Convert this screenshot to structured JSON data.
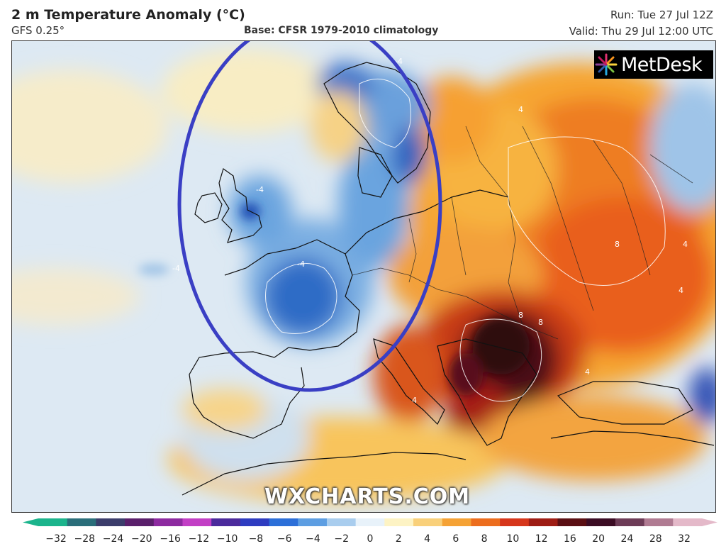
{
  "header": {
    "title": "2 m Temperature Anomaly (°C)",
    "model": "GFS 0.25°",
    "baseline": "Base: CFSR 1979-2010 climatology",
    "run": "Run: Tue 27 Jul 12Z",
    "valid": "Valid: Thu 29 Jul 12:00 UTC"
  },
  "branding": {
    "logo": "MetDesk",
    "logo_icon": "metdesk-starburst-icon",
    "watermark": "WXCHARTS.COM"
  },
  "colors": {
    "highlight_ellipse": "#3a3fc4",
    "background_white": "#ffffff",
    "cold_light": "#dbe9f5",
    "cold_mid": "#8fbde6",
    "cold_deep": "#2b6cc4",
    "warm_light": "#fbe3a4",
    "warm_mid": "#f6a532",
    "warm_deep": "#e2581c",
    "hot_deep": "#8e1d12",
    "extreme": "#3a0d0f"
  },
  "colorbar": {
    "labels": [
      "−32",
      "−28",
      "−24",
      "−20",
      "−16",
      "−12",
      "−10",
      "−8",
      "−6",
      "−4",
      "−2",
      "0",
      "2",
      "4",
      "6",
      "8",
      "10",
      "12",
      "16",
      "20",
      "24",
      "28",
      "32"
    ],
    "colors": [
      "#1bb48c",
      "#2a6e7a",
      "#3b3d6b",
      "#5a1f6b",
      "#8d2aa0",
      "#c23fc5",
      "#4b2a9c",
      "#2e3cc0",
      "#2c6fd8",
      "#5d9ee2",
      "#a9cdee",
      "#e8f2fa",
      "#fdf3c4",
      "#f9d07a",
      "#f5a235",
      "#ec6d1e",
      "#d6361b",
      "#9e1d14",
      "#5a0f13",
      "#3b0c24",
      "#6d3c57",
      "#b07b92",
      "#e4b9c9"
    ]
  },
  "map_labels": {
    "contour_4": "4",
    "contour_neg4": "-4",
    "contour_8": "8"
  }
}
